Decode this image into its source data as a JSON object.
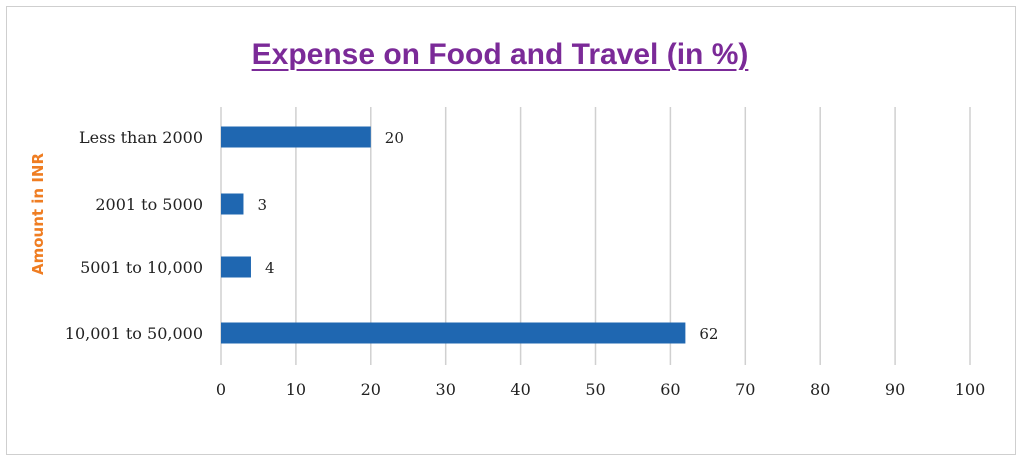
{
  "chart_data": {
    "type": "bar",
    "orientation": "horizontal",
    "title": "Expense on Food  and  Travel (in %)",
    "ylabel": "Amount in INR",
    "xlabel": "",
    "categories": [
      "Less than 2000",
      "2001 to 5000",
      "5001 to 10,000",
      "10,001 to 50,000"
    ],
    "values": [
      20,
      3,
      4,
      62
    ],
    "xlim": [
      0,
      100
    ],
    "xticks": [
      0,
      10,
      20,
      30,
      40,
      50,
      60,
      70,
      80,
      90,
      100
    ],
    "grid": "vertical",
    "legend": "none",
    "colors": {
      "bar": "#1f67b1",
      "title": "#7b2a98",
      "ylabel": "#ef7d22",
      "grid": "#d0d0d0"
    }
  }
}
